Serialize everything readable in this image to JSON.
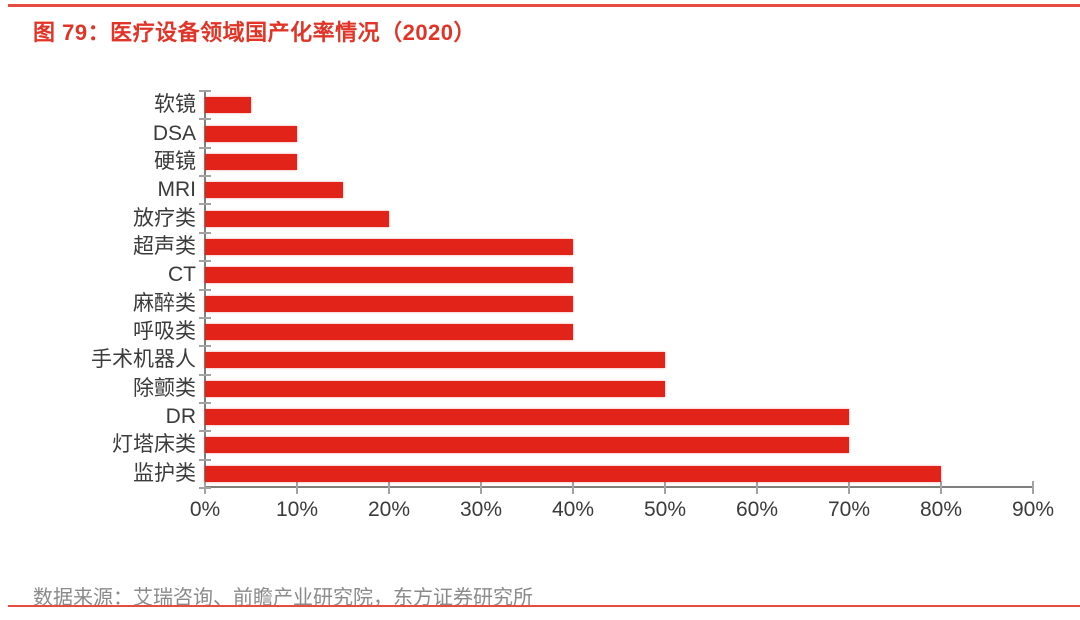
{
  "header": {
    "title": "图 79：医疗设备领域国产化率情况（2020）"
  },
  "footer": {
    "source": "数据来源：艾瑞咨询、前瞻产业研究院，东方证券研究所"
  },
  "colors": {
    "bar": "#E2231A",
    "title": "#E13427",
    "rule": "#E74C41",
    "axis": "#7F7F7F",
    "tick": "#A3A3A3",
    "label": "#3B3B3B",
    "source": "#8A8A8A"
  },
  "chart_data": {
    "type": "bar",
    "orientation": "horizontal",
    "title": "图 79：医疗设备领域国产化率情况（2020）",
    "categories": [
      "软镜",
      "DSA",
      "硬镜",
      "MRI",
      "放疗类",
      "超声类",
      "CT",
      "麻醉类",
      "呼吸类",
      "手术机器人",
      "除颤类",
      "DR",
      "灯塔床类",
      "监护类"
    ],
    "values": [
      5,
      10,
      10,
      15,
      20,
      40,
      40,
      40,
      40,
      50,
      50,
      70,
      70,
      80
    ],
    "unit": "%",
    "xlim": [
      0,
      90
    ],
    "x_ticks": [
      "0%",
      "10%",
      "20%",
      "30%",
      "40%",
      "50%",
      "60%",
      "70%",
      "80%",
      "90%"
    ],
    "xlabel": "",
    "ylabel": "",
    "grid": false,
    "legend": false
  }
}
